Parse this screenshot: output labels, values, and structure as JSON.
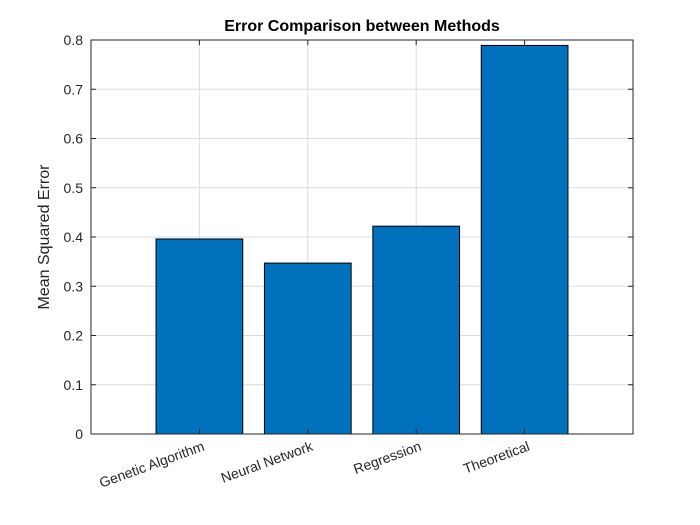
{
  "chart_data": {
    "type": "bar",
    "title": "Error Comparison between Methods",
    "xlabel": "",
    "ylabel": "Mean Squared Error",
    "categories": [
      "Genetic Algorithm",
      "Neural Network",
      "Regression",
      "Theoretical"
    ],
    "values": [
      0.396,
      0.347,
      0.422,
      0.789
    ],
    "ylim": [
      0,
      0.8
    ],
    "yticks": [
      0,
      0.1,
      0.2,
      0.3,
      0.4,
      0.5,
      0.6,
      0.7,
      0.8
    ],
    "ytick_labels": [
      "0",
      "0.1",
      "0.2",
      "0.3",
      "0.4",
      "0.5",
      "0.6",
      "0.7",
      "0.8"
    ],
    "xtick_label_rotation": "diagonal",
    "grid": true,
    "bar_color": "#0072BD",
    "bar_edge_color": "#000000"
  }
}
